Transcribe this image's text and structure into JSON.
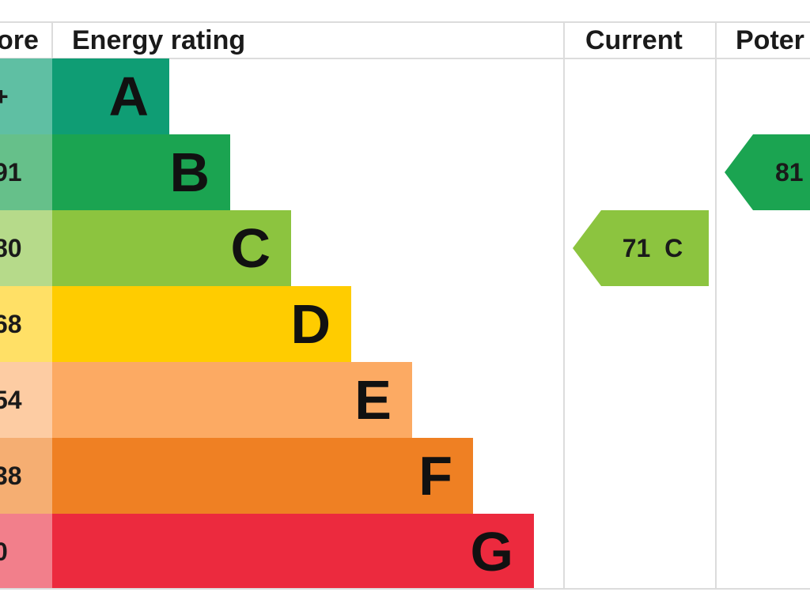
{
  "chart_data": {
    "type": "bar",
    "headers": {
      "score": "ore",
      "rating": "Energy rating",
      "current": "Current",
      "potential": "Poter"
    },
    "bands": [
      {
        "letter": "A",
        "score_range": "+",
        "color": "#0f9d74",
        "score_color": "#5fbfa3"
      },
      {
        "letter": "B",
        "score_range": "91",
        "color": "#1ba451",
        "score_color": "#66c08a"
      },
      {
        "letter": "C",
        "score_range": "80",
        "color": "#8cc43f",
        "score_color": "#b6da8a"
      },
      {
        "letter": "D",
        "score_range": "68",
        "color": "#ffcc00",
        "score_color": "#ffe066"
      },
      {
        "letter": "E",
        "score_range": "54",
        "color": "#fcaa63",
        "score_color": "#fdcca3"
      },
      {
        "letter": "F",
        "score_range": "38",
        "color": "#ef8023",
        "score_color": "#f5ae72"
      },
      {
        "letter": "G",
        "score_range": "0",
        "color": "#ec2a3e",
        "score_color": "#f27f8b"
      }
    ],
    "current": {
      "label": "71  C",
      "value": 71,
      "band": "C",
      "color": "#8cc43f"
    },
    "potential": {
      "label": "81",
      "value": 81,
      "band": "B",
      "color": "#1ba451"
    }
  }
}
